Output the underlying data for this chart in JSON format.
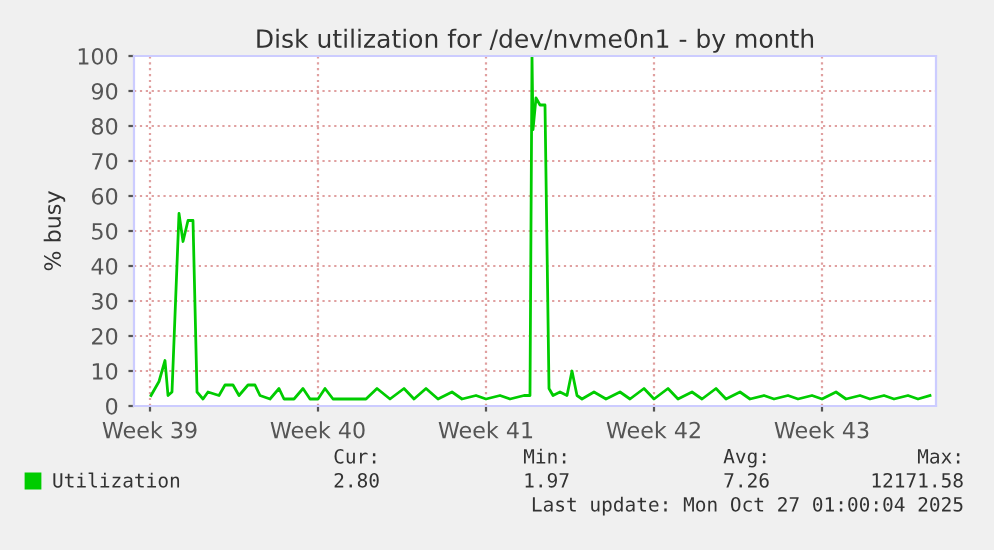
{
  "chart_data": {
    "type": "line",
    "title": "Disk utilization for /dev/nvme0n1 - by month",
    "ylabel": "% busy",
    "x": [
      "2025-09-22T01:00",
      "2025-09-22T09:00",
      "2025-09-22T15:00",
      "2025-09-22T18:00",
      "2025-09-22T22:00",
      "2025-09-23T05:00",
      "2025-09-23T09:00",
      "2025-09-23T14:00",
      "2025-09-23T19:00",
      "2025-09-23T23:00",
      "2025-09-24T05:00",
      "2025-09-24T10:00",
      "2025-09-24T21:00",
      "2025-09-25T03:00",
      "2025-09-25T11:00",
      "2025-09-25T17:00",
      "2025-09-26T02:00",
      "2025-09-26T09:00",
      "2025-09-26T14:00",
      "2025-09-27T00:00",
      "2025-09-27T09:00",
      "2025-09-27T14:00",
      "2025-09-28T00:00",
      "2025-09-28T09:00",
      "2025-09-28T16:00",
      "2025-09-29T00:00",
      "2025-09-29T07:00",
      "2025-09-29T15:00",
      "2025-09-30T00:00",
      "2025-09-30T11:00",
      "2025-10-01T00:00",
      "2025-10-01T11:00",
      "2025-10-02T00:00",
      "2025-10-02T14:00",
      "2025-10-03T00:00",
      "2025-10-03T12:00",
      "2025-10-04T00:00",
      "2025-10-04T14:00",
      "2025-10-05T00:00",
      "2025-10-05T14:00",
      "2025-10-06T00:00",
      "2025-10-06T14:00",
      "2025-10-07T00:00",
      "2025-10-07T14:00",
      "2025-10-07T20:00",
      "2025-10-07T22:00",
      "2025-10-07T23:00",
      "2025-10-08T02:00",
      "2025-10-08T06:00",
      "2025-10-08T11:00",
      "2025-10-08T15:00",
      "2025-10-08T19:00",
      "2025-10-09T02:00",
      "2025-10-09T09:00",
      "2025-10-09T14:00",
      "2025-10-09T19:00",
      "2025-10-10T00:00",
      "2025-10-10T12:00",
      "2025-10-11T00:00",
      "2025-10-11T14:00",
      "2025-10-12T00:00",
      "2025-10-12T14:00",
      "2025-10-13T00:00",
      "2025-10-13T14:00",
      "2025-10-14T00:00",
      "2025-10-14T14:00",
      "2025-10-15T00:00",
      "2025-10-15T14:00",
      "2025-10-16T00:00",
      "2025-10-16T14:00",
      "2025-10-17T00:00",
      "2025-10-17T14:00",
      "2025-10-18T00:00",
      "2025-10-18T14:00",
      "2025-10-19T00:00",
      "2025-10-19T14:00",
      "2025-10-20T00:00",
      "2025-10-20T14:00",
      "2025-10-21T00:00",
      "2025-10-21T14:00",
      "2025-10-22T00:00",
      "2025-10-22T14:00",
      "2025-10-23T00:00",
      "2025-10-23T14:00",
      "2025-10-24T00:00",
      "2025-10-24T12:00"
    ],
    "series": [
      {
        "name": "Utilization",
        "color": "#00cc00",
        "values": [
          3,
          7,
          13,
          3,
          4,
          55,
          47,
          53,
          53,
          4,
          2,
          4,
          3,
          6,
          6,
          3,
          6,
          6,
          3,
          2,
          5,
          2,
          2,
          5,
          2,
          2,
          5,
          2,
          2,
          2,
          2,
          5,
          2,
          5,
          2,
          5,
          2,
          4,
          2,
          3,
          2,
          3,
          2,
          3,
          3,
          100,
          79,
          88,
          86,
          86,
          5,
          3,
          4,
          3,
          10,
          3,
          2,
          4,
          2,
          4,
          2,
          5,
          2,
          5,
          2,
          4,
          2,
          5,
          2,
          4,
          2,
          3,
          2,
          3,
          2,
          3,
          2,
          4,
          2,
          3,
          2,
          3,
          2,
          3,
          2,
          3
        ]
      }
    ],
    "xlim": [
      "2025-09-21T08:00",
      "2025-10-24T18:00"
    ],
    "xticks": [
      {
        "value": "2025-09-22",
        "label": "Week 39"
      },
      {
        "value": "2025-09-29",
        "label": "Week 40"
      },
      {
        "value": "2025-10-06",
        "label": "Week 41"
      },
      {
        "value": "2025-10-13",
        "label": "Week 42"
      },
      {
        "value": "2025-10-20",
        "label": "Week 43"
      }
    ],
    "ylim": [
      0,
      100
    ],
    "yticks": [
      0,
      10,
      20,
      30,
      40,
      50,
      60,
      70,
      80,
      90,
      100
    ],
    "grid": true,
    "legend": "bottom",
    "annotations": [
      "Cur:",
      "Min:",
      "Avg:",
      "Max:",
      "2.80",
      "1.97",
      "7.26",
      "12171.58",
      "Last update: Mon Oct 27 01:00:04 2025"
    ]
  }
}
